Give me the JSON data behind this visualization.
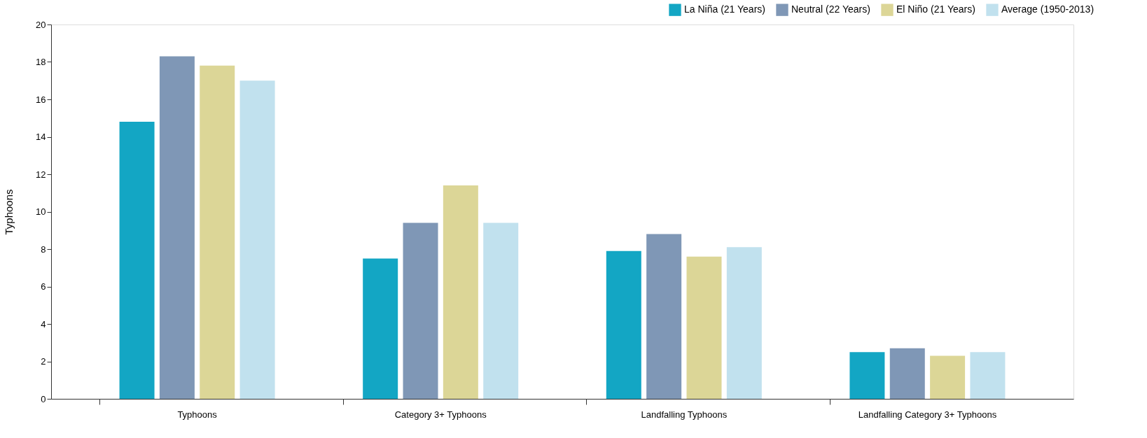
{
  "chart_data": {
    "type": "bar",
    "ylabel": "Typhoons",
    "categories": [
      "Typhoons",
      "Category 3+ Typhoons",
      "Landfalling Typhoons",
      "Landfalling Category 3+ Typhoons"
    ],
    "series": [
      {
        "name": "La Niña (21 Years)",
        "color": "#13a6c4",
        "values": [
          14.8,
          7.5,
          7.9,
          2.5
        ]
      },
      {
        "name": "Neutral (22 Years)",
        "color": "#7f97b6",
        "values": [
          18.3,
          9.4,
          8.8,
          2.7
        ]
      },
      {
        "name": "El Niño (21 Years)",
        "color": "#dcd697",
        "values": [
          17.8,
          11.4,
          7.6,
          2.3
        ]
      },
      {
        "name": "Average (1950-2013)",
        "color": "#c1e1ee",
        "values": [
          17.0,
          9.4,
          8.1,
          2.5
        ]
      }
    ],
    "ylim": [
      0,
      20
    ],
    "yticks": [
      0,
      2,
      4,
      6,
      8,
      10,
      12,
      14,
      16,
      18,
      20
    ],
    "grid": false,
    "legend": "top right"
  }
}
